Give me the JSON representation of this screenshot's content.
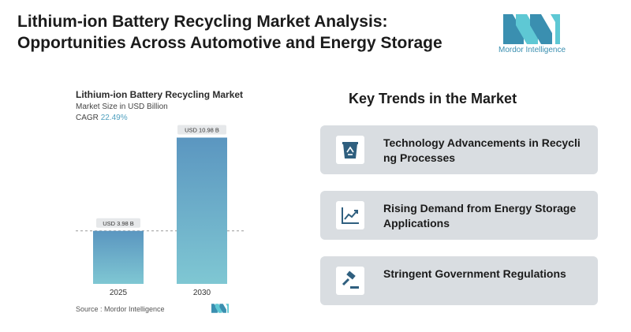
{
  "header": {
    "title_line1": "Lithium-ion Battery Recycling Market Analysis:",
    "title_line2": "Opportunities Across Automotive and Energy Storage"
  },
  "brand": {
    "name": "Mordor Intelligence",
    "color": "#3a8fb0",
    "accent": "#5ec8d4"
  },
  "chart_meta": {
    "market_name": "Lithium-ion Battery Recycling Market",
    "unit_label": "Market Size in USD Billion",
    "cagr_label": "CAGR",
    "cagr_value": "22.49%"
  },
  "chart_data": {
    "type": "bar",
    "title": "Lithium-ion Battery Recycling Market",
    "categories": [
      "2025",
      "2030"
    ],
    "values": [
      3.98,
      10.98
    ],
    "data_labels": [
      "USD 3.98 B",
      "USD 10.98 B"
    ],
    "ylim": [
      0,
      11.6
    ],
    "grid": false,
    "reference_line_value": 3.98,
    "colors": {
      "top": "#5b96c0",
      "bottom": "#7fc7d3"
    }
  },
  "source": "Source : Mordor Intelligence",
  "trends": {
    "title": "Key Trends in the Market",
    "items": [
      {
        "label": "Technology Advancements in Recycling Processes",
        "icon": "recycle-bin-icon"
      },
      {
        "label": "Rising Demand from Energy Storage Applications",
        "icon": "rising-chart-icon"
      },
      {
        "label": "Stringent Government Regulations",
        "icon": "gavel-icon"
      }
    ],
    "icon_color": "#2f5f7f"
  }
}
